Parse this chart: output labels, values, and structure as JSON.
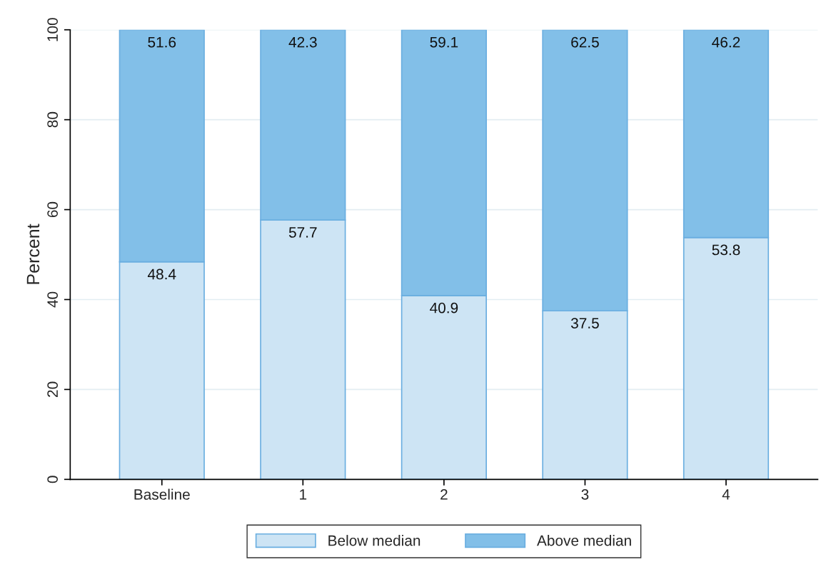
{
  "chart_data": {
    "type": "bar",
    "stacked": true,
    "ylabel": "Percent",
    "categories": [
      "Baseline",
      "1",
      "2",
      "3",
      "4"
    ],
    "series": [
      {
        "name": "Below median",
        "color": "#cde4f4",
        "values": [
          48.4,
          57.7,
          40.9,
          37.5,
          53.8
        ]
      },
      {
        "name": "Above median",
        "color": "#82bfe8",
        "values": [
          51.6,
          42.3,
          59.1,
          62.5,
          46.2
        ]
      }
    ],
    "ylim": [
      0,
      100
    ],
    "yticks": [
      0,
      20,
      40,
      60,
      80,
      100
    ],
    "grid": "y",
    "legend": "bottom",
    "data_labels": true
  }
}
